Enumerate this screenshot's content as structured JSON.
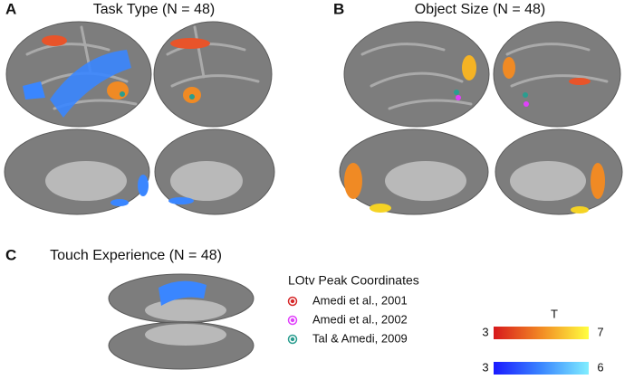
{
  "panels": [
    {
      "letter": "A",
      "title": "Task Type (N = 48)"
    },
    {
      "letter": "B",
      "title": "Object Size (N = 48)"
    },
    {
      "letter": "C",
      "title": "Touch Experience (N = 48)"
    }
  ],
  "legend": {
    "title": "LOtv Peak Coordinates",
    "items": [
      {
        "label": "Amedi et al., 2001",
        "color": "#d62728"
      },
      {
        "label": "Amedi et al., 2002",
        "color": "#e040fb"
      },
      {
        "label": "Tal & Amedi, 2009",
        "color": "#2a9d8f"
      }
    ]
  },
  "colorbar": {
    "label": "T",
    "scales": [
      {
        "min": 3,
        "max": 7,
        "colors": [
          "#d7191c",
          "#f28a24",
          "#ffff40"
        ]
      },
      {
        "min": 3,
        "max": 6,
        "colors": [
          "#1a1aff",
          "#3a86ff",
          "#80eeff"
        ]
      }
    ]
  }
}
